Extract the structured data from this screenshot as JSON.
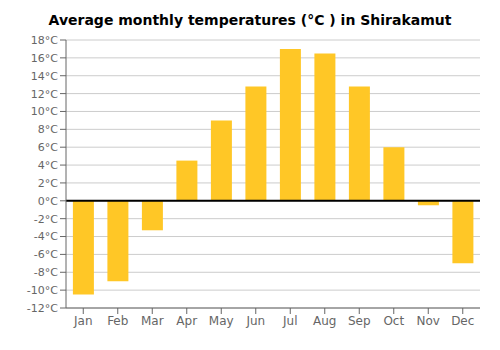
{
  "chart_data": {
    "type": "bar",
    "title": "Average monthly temperatures (°C ) in Shirakamut",
    "categories": [
      "Jan",
      "Feb",
      "Mar",
      "Apr",
      "May",
      "Jun",
      "Jul",
      "Aug",
      "Sep",
      "Oct",
      "Nov",
      "Dec"
    ],
    "values": [
      -10.5,
      -9.0,
      -3.3,
      4.5,
      9.0,
      12.8,
      17.0,
      16.5,
      12.8,
      6.0,
      -0.5,
      -7.0
    ],
    "color": "#FFC726",
    "ylim": [
      -12,
      18
    ],
    "yticks": [
      {
        "value": -12,
        "label": "-12°C"
      },
      {
        "value": -10,
        "label": "-10°C"
      },
      {
        "value": -8,
        "label": "-8°C"
      },
      {
        "value": -6,
        "label": "-6°C"
      },
      {
        "value": -4,
        "label": "-4°C"
      },
      {
        "value": -2,
        "label": "-2°C"
      },
      {
        "value": 0,
        "label": "0°C"
      },
      {
        "value": 2,
        "label": "2°C"
      },
      {
        "value": 4,
        "label": "4°C"
      },
      {
        "value": 6,
        "label": "6°C"
      },
      {
        "value": 8,
        "label": "8°C"
      },
      {
        "value": 10,
        "label": "10°C"
      },
      {
        "value": 12,
        "label": "12°C"
      },
      {
        "value": 14,
        "label": "14°C"
      },
      {
        "value": 16,
        "label": "16°C"
      },
      {
        "value": 18,
        "label": "18°C"
      }
    ],
    "grid": true
  }
}
